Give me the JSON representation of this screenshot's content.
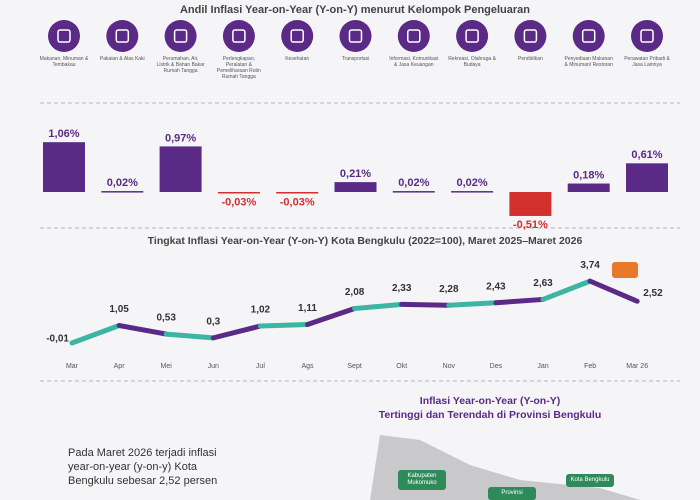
{
  "chart_data": [
    {
      "type": "bar",
      "title": "Andil Inflasi Year-on-Year (Y-on-Y) menurut Kelompok Pengeluaran",
      "categories": [
        "Makanan, Minuman & Tembakau",
        "Pakaian & Alas Kaki",
        "Perumahan, Air, Listrik & Bahan Bakar Rumah Tangga",
        "Perlengkapan, Peralatan & Pemeliharaan Rutin Rumah Tangga",
        "Kesehatan",
        "Transportasi",
        "Informasi, Komunikasi & Jasa Keuangan",
        "Rekreasi, Olahraga & Budaya",
        "Pendidikan",
        "Penyediaan Makanan & Minuman/ Restoran",
        "Perawatan Pribadi & Jasa Lainnya"
      ],
      "values": [
        1.06,
        0.02,
        0.97,
        -0.03,
        -0.03,
        0.21,
        0.02,
        0.02,
        -0.51,
        0.18,
        0.61
      ],
      "value_labels": [
        "1,06%",
        "0,02%",
        "0,97%",
        "-0,03%",
        "-0,03%",
        "0,21%",
        "0,02%",
        "0,02%",
        "-0,51%",
        "0,18%",
        "0,61%"
      ],
      "color": "#5b2a87",
      "negative_color": "#d2302c"
    },
    {
      "type": "line",
      "title": "Tingkat Inflasi Year-on-Year (Y-on-Y) Kota Bengkulu (2022=100), Maret 2025–Maret 2026",
      "categories": [
        "Mar",
        "Apr",
        "Mei",
        "Jun",
        "Jul",
        "Ags",
        "Sept",
        "Okt",
        "Nov",
        "Des",
        "Jan",
        "Feb",
        "Mar 26"
      ],
      "series": [
        {
          "values": [
            -0.01,
            1.05,
            0.53,
            0.3,
            1.02,
            1.11,
            2.08,
            2.33,
            2.28,
            2.43,
            2.63,
            3.74,
            2.52
          ],
          "value_labels": [
            "-0,01",
            "1,05",
            "0,53",
            "0,3",
            "1,02",
            "1,11",
            "2,08",
            "2,33",
            "2,28",
            "2,43",
            "2,63",
            "3,74",
            "2,52"
          ],
          "colors": [
            "#3cb5a2",
            "#5b2a87"
          ]
        }
      ]
    }
  ],
  "panel": {
    "title": "Inflasi Year-on-Year (Y-on-Y)",
    "subtitle": "Tertinggi dan Terendah di Provinsi Bengkulu",
    "text": "Pada Maret 2026 terjadi inflasi year-on-year (y-on-y) Kota Bengkulu sebesar 2,52 persen",
    "map_labels": [
      "Kabupaten Mukomuko",
      "Provinsi",
      "Kota Bengkulu"
    ]
  }
}
